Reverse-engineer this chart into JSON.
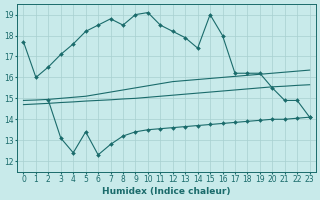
{
  "title": "",
  "xlabel": "Humidex (Indice chaleur)",
  "ylabel": "",
  "xlim": [
    -0.5,
    23.5
  ],
  "ylim": [
    11.5,
    19.5
  ],
  "yticks": [
    12,
    13,
    14,
    15,
    16,
    17,
    18,
    19
  ],
  "xticks": [
    0,
    1,
    2,
    3,
    4,
    5,
    6,
    7,
    8,
    9,
    10,
    11,
    12,
    13,
    14,
    15,
    16,
    17,
    18,
    19,
    20,
    21,
    22,
    23
  ],
  "background_color": "#c8eaea",
  "grid_color": "#a8d0d0",
  "line_color": "#1a6b6b",
  "line1_x": [
    0,
    1,
    2,
    3,
    4,
    5,
    6,
    7,
    8,
    9,
    10,
    11,
    12,
    13,
    14,
    15,
    16,
    17,
    18,
    19,
    20,
    21,
    22,
    23
  ],
  "line1_y": [
    17.7,
    16.0,
    16.5,
    17.1,
    17.6,
    18.2,
    18.5,
    18.8,
    18.5,
    19.0,
    19.1,
    18.5,
    18.2,
    17.9,
    17.4,
    19.0,
    18.0,
    16.2,
    16.2,
    16.2,
    15.5,
    14.9,
    14.9,
    14.1
  ],
  "line2_x": [
    0,
    1,
    2,
    3,
    4,
    5,
    6,
    7,
    8,
    9,
    10,
    11,
    12,
    13,
    14,
    15,
    16,
    17,
    18,
    19,
    20,
    21,
    22,
    23
  ],
  "line2_y": [
    14.9,
    14.92,
    14.95,
    15.0,
    15.05,
    15.1,
    15.2,
    15.3,
    15.4,
    15.5,
    15.6,
    15.7,
    15.8,
    15.85,
    15.9,
    15.95,
    16.0,
    16.05,
    16.1,
    16.15,
    16.2,
    16.25,
    16.3,
    16.35
  ],
  "line3_x": [
    0,
    1,
    2,
    3,
    4,
    5,
    6,
    7,
    8,
    9,
    10,
    11,
    12,
    13,
    14,
    15,
    16,
    17,
    18,
    19,
    20,
    21,
    22,
    23
  ],
  "line3_y": [
    14.7,
    14.73,
    14.76,
    14.8,
    14.83,
    14.87,
    14.9,
    14.93,
    14.97,
    15.0,
    15.05,
    15.1,
    15.15,
    15.2,
    15.25,
    15.3,
    15.35,
    15.4,
    15.45,
    15.5,
    15.55,
    15.58,
    15.62,
    15.65
  ],
  "line4_x": [
    2,
    3,
    4,
    5,
    6,
    7,
    8,
    9,
    10,
    11,
    12,
    13,
    14,
    15,
    16,
    17,
    18,
    19,
    20,
    21,
    22,
    23
  ],
  "line4_y": [
    14.9,
    13.1,
    12.4,
    13.4,
    12.3,
    12.8,
    13.2,
    13.4,
    13.5,
    13.55,
    13.6,
    13.65,
    13.7,
    13.75,
    13.8,
    13.85,
    13.9,
    13.95,
    14.0,
    14.0,
    14.05,
    14.1
  ]
}
